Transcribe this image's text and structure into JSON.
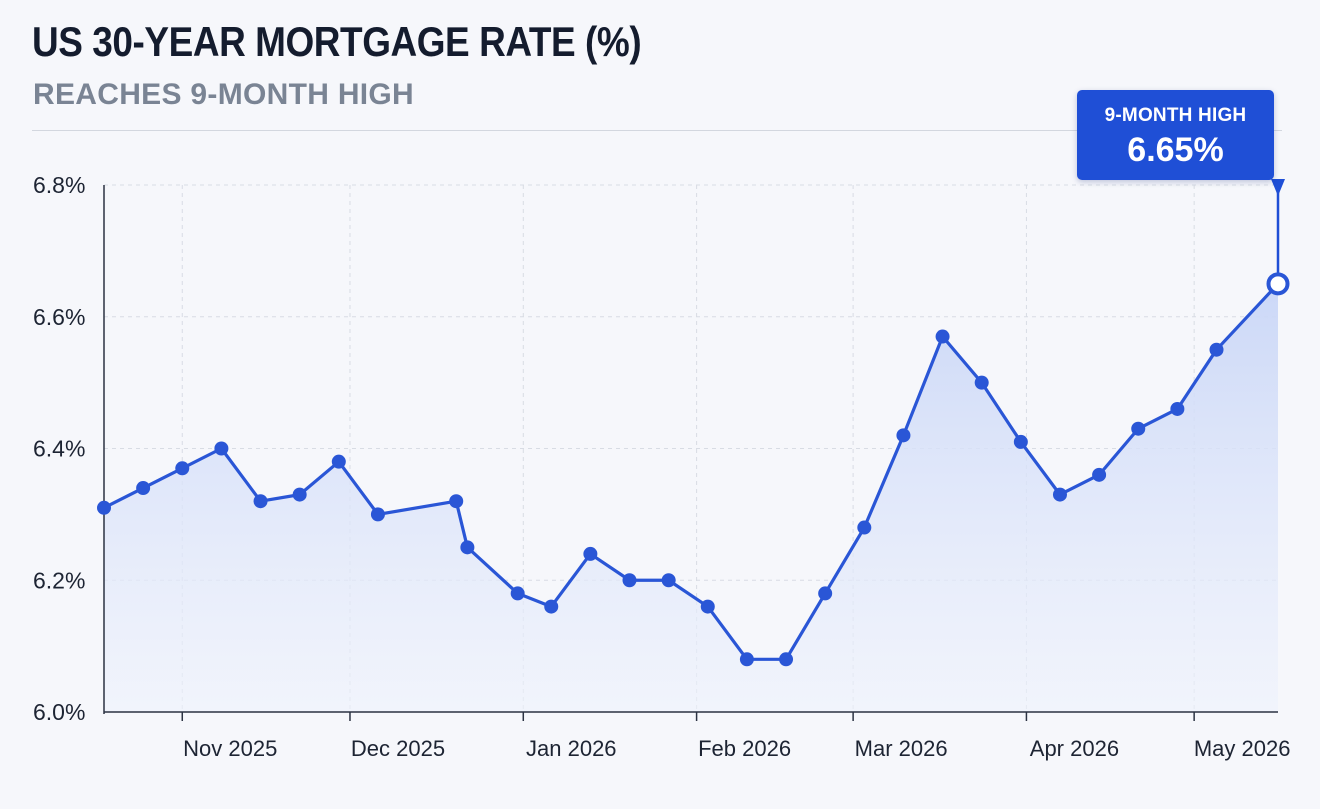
{
  "header": {
    "title": "US 30-YEAR MORTGAGE RATE (%)",
    "subtitle": "REACHES 9-MONTH HIGH"
  },
  "callout": {
    "label": "9-MONTH HIGH",
    "value": "6.65%"
  },
  "colors": {
    "line": "#2a56d6",
    "marker": "#2a56d6",
    "area_top": "#c9d6f7",
    "callout_bg": "#1f4fd6",
    "grid": "#d8dce4"
  },
  "chart_data": {
    "type": "line",
    "title": "US 30-YEAR MORTGAGE RATE (%)",
    "subtitle": "REACHES 9-MONTH HIGH",
    "xlabel": "",
    "ylabel": "",
    "ylim": [
      6.0,
      6.8
    ],
    "y_ticks": [
      6.0,
      6.2,
      6.4,
      6.6,
      6.8
    ],
    "y_tick_labels": [
      "6.0%",
      "6.2%",
      "6.4%",
      "6.6%",
      "6.8%"
    ],
    "x_range": [
      "2025-10-18",
      "2026-05-16"
    ],
    "x_ticks": [
      "2025-11-01",
      "2025-12-01",
      "2026-01-01",
      "2026-02-01",
      "2026-03-01",
      "2026-04-01",
      "2026-05-01"
    ],
    "x_tick_labels": [
      "Nov 2025",
      "Dec 2025",
      "Jan 2026",
      "Feb 2026",
      "Mar 2026",
      "Apr 2026",
      "May 2026"
    ],
    "grid": true,
    "area_fill": true,
    "points": [
      {
        "x": "2025-10-18",
        "y": 6.31
      },
      {
        "x": "2025-10-25",
        "y": 6.34
      },
      {
        "x": "2025-11-01",
        "y": 6.37
      },
      {
        "x": "2025-11-08",
        "y": 6.4
      },
      {
        "x": "2025-11-15",
        "y": 6.32
      },
      {
        "x": "2025-11-22",
        "y": 6.33
      },
      {
        "x": "2025-11-29",
        "y": 6.38
      },
      {
        "x": "2025-12-06",
        "y": 6.3
      },
      {
        "x": "2025-12-20",
        "y": 6.32
      },
      {
        "x": "2025-12-22",
        "y": 6.25
      },
      {
        "x": "2025-12-31",
        "y": 6.18
      },
      {
        "x": "2026-01-06",
        "y": 6.16
      },
      {
        "x": "2026-01-13",
        "y": 6.24
      },
      {
        "x": "2026-01-20",
        "y": 6.2
      },
      {
        "x": "2026-01-27",
        "y": 6.2
      },
      {
        "x": "2026-02-03",
        "y": 6.16
      },
      {
        "x": "2026-02-10",
        "y": 6.08
      },
      {
        "x": "2026-02-17",
        "y": 6.08
      },
      {
        "x": "2026-02-24",
        "y": 6.18
      },
      {
        "x": "2026-03-03",
        "y": 6.28
      },
      {
        "x": "2026-03-10",
        "y": 6.42
      },
      {
        "x": "2026-03-17",
        "y": 6.57
      },
      {
        "x": "2026-03-24",
        "y": 6.5
      },
      {
        "x": "2026-03-31",
        "y": 6.41
      },
      {
        "x": "2026-04-07",
        "y": 6.33
      },
      {
        "x": "2026-04-14",
        "y": 6.36
      },
      {
        "x": "2026-04-21",
        "y": 6.43
      },
      {
        "x": "2026-04-28",
        "y": 6.46
      },
      {
        "x": "2026-05-05",
        "y": 6.55
      },
      {
        "x": "2026-05-16",
        "y": 6.65
      }
    ],
    "highlight": {
      "x": "2026-05-16",
      "y": 6.65
    }
  }
}
